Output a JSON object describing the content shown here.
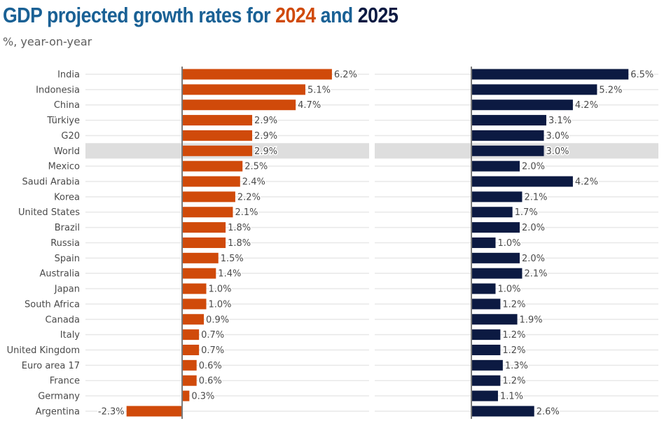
{
  "chart_data": {
    "type": "bar",
    "orientation": "horizontal",
    "title": {
      "prefix": "GDP projected growth rates for ",
      "year1": "2024",
      "middle": " and ",
      "year2": "2025",
      "full": "GDP projected growth rates for 2024 and 2025"
    },
    "subtitle": "%, year-on-year",
    "xlabel": "",
    "ylabel": "",
    "xlim": [
      -2.3,
      6.5
    ],
    "grid": true,
    "highlight_category": "World",
    "colors": {
      "2024": "#d04a0a",
      "2025": "#0c1a42",
      "title": "#1a6195",
      "highlight": "#dedede",
      "axis": "#7a7a7a",
      "grid": "#e8e8e8"
    },
    "categories": [
      "India",
      "Indonesia",
      "China",
      "Türkiye",
      "G20",
      "World",
      "Mexico",
      "Saudi Arabia",
      "Korea",
      "United States",
      "Brazil",
      "Russia",
      "Spain",
      "Australia",
      "Japan",
      "South Africa",
      "Canada",
      "Italy",
      "United Kingdom",
      "Euro area 17",
      "France",
      "Germany",
      "Argentina"
    ],
    "series": [
      {
        "name": "2024",
        "values": [
          6.2,
          5.1,
          4.7,
          2.9,
          2.9,
          2.9,
          2.5,
          2.4,
          2.2,
          2.1,
          1.8,
          1.8,
          1.5,
          1.4,
          1.0,
          1.0,
          0.9,
          0.7,
          0.7,
          0.6,
          0.6,
          0.3,
          -2.3
        ]
      },
      {
        "name": "2025",
        "values": [
          6.5,
          5.2,
          4.2,
          3.1,
          3.0,
          3.0,
          2.0,
          4.2,
          2.1,
          1.7,
          2.0,
          1.0,
          2.0,
          2.1,
          1.0,
          1.2,
          1.9,
          1.2,
          1.2,
          1.3,
          1.2,
          1.1,
          2.6
        ]
      }
    ],
    "value_suffix": "%"
  }
}
